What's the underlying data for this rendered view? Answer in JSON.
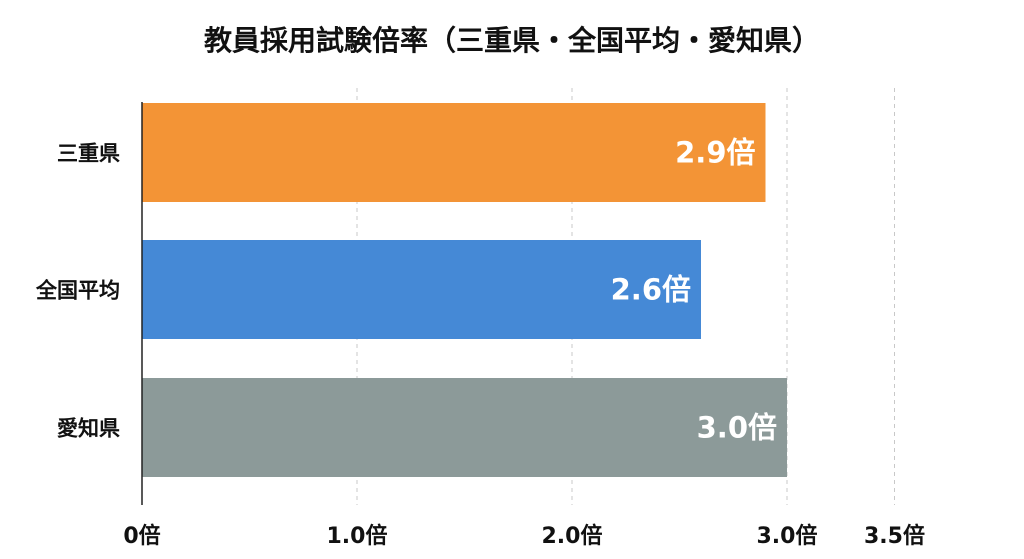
{
  "chart_data": {
    "type": "bar",
    "orientation": "horizontal",
    "title": "教員採用試験倍率（三重県・全国平均・愛知県）",
    "unit": "倍",
    "categories": [
      "三重県",
      "全国平均",
      "愛知県"
    ],
    "values": [
      2.9,
      2.6,
      3.0
    ],
    "data_labels": [
      "2.9倍",
      "2.6倍",
      "3.0倍"
    ],
    "colors": [
      "#F39436",
      "#4589D6",
      "#8C9A99"
    ],
    "xlim": [
      0,
      3.5
    ],
    "x_ticks": [
      0,
      1.0,
      2.0,
      3.0,
      3.5
    ],
    "x_tick_labels": [
      "0倍",
      "1.0倍",
      "2.0倍",
      "3.0倍",
      "3.5倍"
    ],
    "grid": "vertical dashed",
    "legend": "none"
  }
}
